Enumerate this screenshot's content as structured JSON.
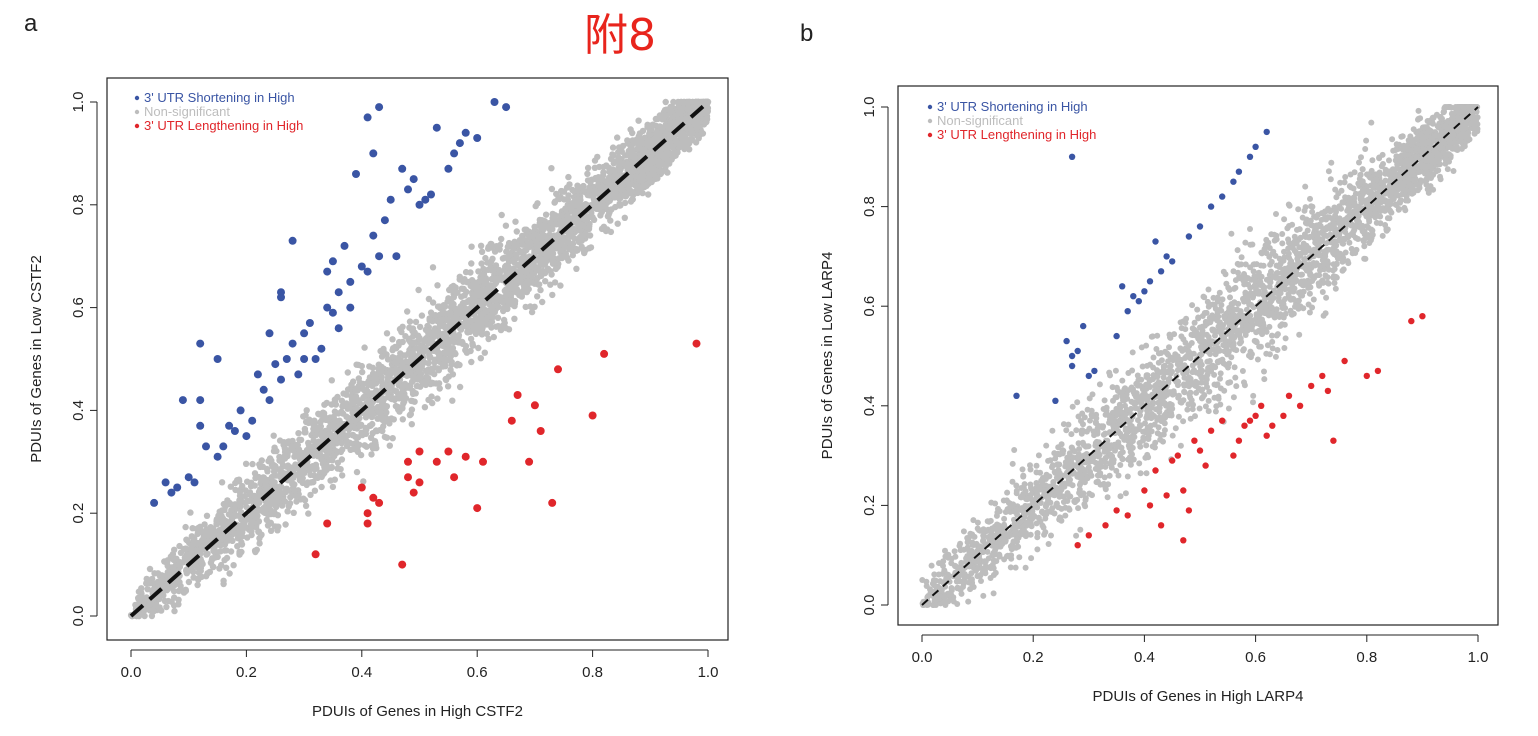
{
  "annotation": "附8",
  "colors": {
    "shortening": "#3a55a4",
    "nonsig": "#bdbdbd",
    "lengthening": "#e0262b"
  },
  "chart_data": [
    {
      "type": "scatter",
      "panel_label": "a",
      "xlabel": "PDUIs of Genes in High CSTF2",
      "ylabel": "PDUIs of Genes in Low CSTF2",
      "xlim": [
        0,
        1
      ],
      "ylim": [
        0,
        1
      ],
      "xticks": [
        "0.0",
        "0.2",
        "0.4",
        "0.6",
        "0.8",
        "1.0"
      ],
      "yticks": [
        "0.0",
        "0.2",
        "0.4",
        "0.6",
        "0.8",
        "1.0"
      ],
      "grid": false,
      "legend_position": "top-left",
      "diagonal": "y = x, dashed",
      "series": [
        {
          "name": "3' UTR Shortening in High",
          "color": "#3a55a4",
          "points": [
            [
              0.04,
              0.22
            ],
            [
              0.06,
              0.26
            ],
            [
              0.07,
              0.24
            ],
            [
              0.08,
              0.25
            ],
            [
              0.09,
              0.42
            ],
            [
              0.1,
              0.27
            ],
            [
              0.11,
              0.26
            ],
            [
              0.12,
              0.53
            ],
            [
              0.12,
              0.42
            ],
            [
              0.12,
              0.37
            ],
            [
              0.13,
              0.33
            ],
            [
              0.15,
              0.5
            ],
            [
              0.15,
              0.31
            ],
            [
              0.16,
              0.33
            ],
            [
              0.17,
              0.37
            ],
            [
              0.18,
              0.36
            ],
            [
              0.19,
              0.4
            ],
            [
              0.2,
              0.35
            ],
            [
              0.21,
              0.38
            ],
            [
              0.22,
              0.47
            ],
            [
              0.23,
              0.44
            ],
            [
              0.24,
              0.55
            ],
            [
              0.24,
              0.42
            ],
            [
              0.25,
              0.49
            ],
            [
              0.26,
              0.46
            ],
            [
              0.26,
              0.63
            ],
            [
              0.27,
              0.5
            ],
            [
              0.28,
              0.53
            ],
            [
              0.28,
              0.73
            ],
            [
              0.29,
              0.47
            ],
            [
              0.3,
              0.55
            ],
            [
              0.3,
              0.5
            ],
            [
              0.31,
              0.57
            ],
            [
              0.32,
              0.5
            ],
            [
              0.33,
              0.52
            ],
            [
              0.34,
              0.6
            ],
            [
              0.35,
              0.59
            ],
            [
              0.35,
              0.69
            ],
            [
              0.36,
              0.63
            ],
            [
              0.36,
              0.56
            ],
            [
              0.37,
              0.72
            ],
            [
              0.38,
              0.65
            ],
            [
              0.38,
              0.6
            ],
            [
              0.39,
              0.86
            ],
            [
              0.4,
              0.68
            ],
            [
              0.41,
              0.67
            ],
            [
              0.41,
              0.97
            ],
            [
              0.42,
              0.9
            ],
            [
              0.43,
              0.99
            ],
            [
              0.43,
              0.7
            ],
            [
              0.44,
              0.77
            ],
            [
              0.45,
              0.81
            ],
            [
              0.46,
              0.7
            ],
            [
              0.47,
              0.87
            ],
            [
              0.48,
              0.83
            ],
            [
              0.49,
              0.85
            ],
            [
              0.5,
              0.8
            ],
            [
              0.51,
              0.81
            ],
            [
              0.52,
              0.82
            ],
            [
              0.53,
              0.95
            ],
            [
              0.55,
              0.87
            ],
            [
              0.56,
              0.9
            ],
            [
              0.57,
              0.92
            ],
            [
              0.58,
              0.94
            ],
            [
              0.6,
              0.93
            ],
            [
              0.63,
              1.0
            ],
            [
              0.65,
              0.99
            ],
            [
              0.26,
              0.62
            ],
            [
              0.34,
              0.67
            ],
            [
              0.42,
              0.74
            ]
          ]
        },
        {
          "name": "Non-significant",
          "color": "#bdbdbd",
          "points": []
        },
        {
          "name": "3' UTR Lengthening in High",
          "color": "#e0262b",
          "points": [
            [
              0.32,
              0.12
            ],
            [
              0.34,
              0.18
            ],
            [
              0.4,
              0.25
            ],
            [
              0.41,
              0.2
            ],
            [
              0.41,
              0.18
            ],
            [
              0.42,
              0.23
            ],
            [
              0.43,
              0.22
            ],
            [
              0.47,
              0.1
            ],
            [
              0.48,
              0.3
            ],
            [
              0.48,
              0.27
            ],
            [
              0.49,
              0.24
            ],
            [
              0.5,
              0.26
            ],
            [
              0.5,
              0.32
            ],
            [
              0.53,
              0.3
            ],
            [
              0.55,
              0.32
            ],
            [
              0.56,
              0.27
            ],
            [
              0.58,
              0.31
            ],
            [
              0.6,
              0.21
            ],
            [
              0.61,
              0.3
            ],
            [
              0.66,
              0.38
            ],
            [
              0.67,
              0.43
            ],
            [
              0.69,
              0.3
            ],
            [
              0.7,
              0.41
            ],
            [
              0.71,
              0.36
            ],
            [
              0.73,
              0.22
            ],
            [
              0.74,
              0.48
            ],
            [
              0.8,
              0.39
            ],
            [
              0.82,
              0.51
            ],
            [
              0.98,
              0.53
            ]
          ]
        }
      ]
    },
    {
      "type": "scatter",
      "panel_label": "b",
      "xlabel": "PDUIs of Genes in High LARP4",
      "ylabel": "PDUIs of Genes in Low LARP4",
      "xlim": [
        0,
        1
      ],
      "ylim": [
        0,
        1
      ],
      "xticks": [
        "0.0",
        "0.2",
        "0.4",
        "0.6",
        "0.8",
        "1.0"
      ],
      "yticks": [
        "0.0",
        "0.2",
        "0.4",
        "0.6",
        "0.8",
        "1.0"
      ],
      "grid": false,
      "legend_position": "top-left",
      "diagonal": "y = x, dashed",
      "series": [
        {
          "name": "3' UTR Shortening in High",
          "color": "#3a55a4",
          "points": [
            [
              0.17,
              0.42
            ],
            [
              0.24,
              0.41
            ],
            [
              0.26,
              0.53
            ],
            [
              0.27,
              0.5
            ],
            [
              0.27,
              0.48
            ],
            [
              0.28,
              0.51
            ],
            [
              0.29,
              0.56
            ],
            [
              0.3,
              0.46
            ],
            [
              0.31,
              0.47
            ],
            [
              0.35,
              0.54
            ],
            [
              0.36,
              0.64
            ],
            [
              0.37,
              0.59
            ],
            [
              0.38,
              0.62
            ],
            [
              0.39,
              0.61
            ],
            [
              0.4,
              0.63
            ],
            [
              0.41,
              0.65
            ],
            [
              0.42,
              0.73
            ],
            [
              0.43,
              0.67
            ],
            [
              0.44,
              0.7
            ],
            [
              0.45,
              0.69
            ],
            [
              0.48,
              0.74
            ],
            [
              0.5,
              0.76
            ],
            [
              0.52,
              0.8
            ],
            [
              0.54,
              0.82
            ],
            [
              0.56,
              0.85
            ],
            [
              0.57,
              0.87
            ],
            [
              0.59,
              0.9
            ],
            [
              0.6,
              0.92
            ],
            [
              0.62,
              0.95
            ],
            [
              0.27,
              0.9
            ]
          ]
        },
        {
          "name": "Non-significant",
          "color": "#bdbdbd",
          "points": []
        },
        {
          "name": "3' UTR Lengthening in High",
          "color": "#e0262b",
          "points": [
            [
              0.28,
              0.12
            ],
            [
              0.3,
              0.14
            ],
            [
              0.33,
              0.16
            ],
            [
              0.35,
              0.19
            ],
            [
              0.37,
              0.18
            ],
            [
              0.4,
              0.23
            ],
            [
              0.41,
              0.2
            ],
            [
              0.42,
              0.27
            ],
            [
              0.43,
              0.16
            ],
            [
              0.44,
              0.22
            ],
            [
              0.45,
              0.29
            ],
            [
              0.46,
              0.3
            ],
            [
              0.47,
              0.13
            ],
            [
              0.47,
              0.23
            ],
            [
              0.48,
              0.19
            ],
            [
              0.49,
              0.33
            ],
            [
              0.5,
              0.31
            ],
            [
              0.51,
              0.28
            ],
            [
              0.52,
              0.35
            ],
            [
              0.54,
              0.37
            ],
            [
              0.56,
              0.3
            ],
            [
              0.57,
              0.33
            ],
            [
              0.58,
              0.36
            ],
            [
              0.59,
              0.37
            ],
            [
              0.6,
              0.38
            ],
            [
              0.61,
              0.4
            ],
            [
              0.62,
              0.34
            ],
            [
              0.63,
              0.36
            ],
            [
              0.65,
              0.38
            ],
            [
              0.66,
              0.42
            ],
            [
              0.68,
              0.4
            ],
            [
              0.7,
              0.44
            ],
            [
              0.72,
              0.46
            ],
            [
              0.73,
              0.43
            ],
            [
              0.74,
              0.33
            ],
            [
              0.76,
              0.49
            ],
            [
              0.8,
              0.46
            ],
            [
              0.82,
              0.47
            ],
            [
              0.88,
              0.57
            ],
            [
              0.9,
              0.58
            ]
          ]
        }
      ]
    }
  ]
}
